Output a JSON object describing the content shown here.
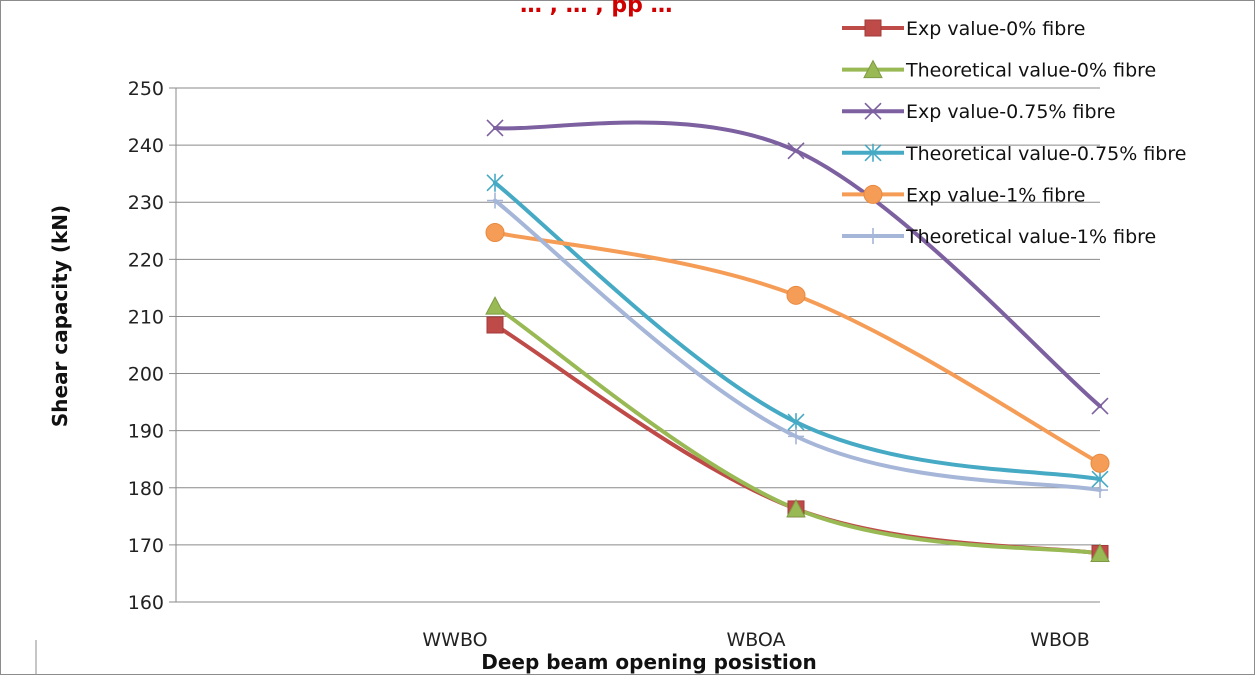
{
  "top_text": "… , … , pp …",
  "chart_data": {
    "type": "line",
    "title": "",
    "xlabel": "Deep beam opening posistion",
    "ylabel": "Shear capacity  (kN)",
    "categories": [
      "WWBO",
      "WBOA",
      "WBOB"
    ],
    "ylim": [
      160,
      250
    ],
    "yticks": [
      160,
      170,
      180,
      190,
      200,
      210,
      220,
      230,
      240,
      250
    ],
    "grid": true,
    "legend_position": "top-right",
    "series": [
      {
        "name": "Exp value-0% fibre",
        "values": [
          208.5,
          176.3,
          168.5
        ],
        "color": "#be4b48",
        "marker": "square"
      },
      {
        "name": "Theoretical value-0% fibre",
        "values": [
          211.8,
          176.3,
          168.5
        ],
        "color": "#98b954",
        "marker": "triangle"
      },
      {
        "name": "Exp value-0.75% fibre",
        "values": [
          243,
          239,
          194.3
        ],
        "color": "#7d60a0",
        "marker": "x"
      },
      {
        "name": "Theoretical value-0.75% fibre",
        "values": [
          233.4,
          191.5,
          181.5
        ],
        "color": "#46aac5",
        "marker": "star"
      },
      {
        "name": "Exp value-1% fibre",
        "values": [
          224.7,
          213.7,
          184.3
        ],
        "color": "#f59d56",
        "marker": "circle"
      },
      {
        "name": "Theoretical value-1% fibre",
        "values": [
          230.3,
          189,
          179.6
        ],
        "color": "#a5b6d8",
        "marker": "plus"
      }
    ]
  }
}
